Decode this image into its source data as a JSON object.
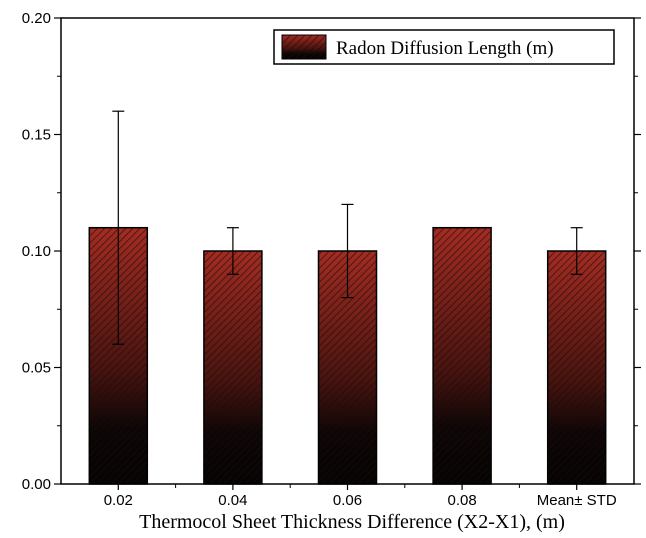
{
  "chart_data": {
    "type": "bar",
    "categories": [
      "0.02",
      "0.04",
      "0.06",
      "0.08",
      "Mean± STD"
    ],
    "values": [
      0.11,
      0.1,
      0.1,
      0.11,
      0.1
    ],
    "error_low": [
      0.06,
      0.09,
      0.08,
      0.11,
      0.09
    ],
    "error_high": [
      0.16,
      0.11,
      0.12,
      0.11,
      0.11
    ],
    "series": [
      {
        "name": "Radon Diffusion Length (m)",
        "values": [
          0.11,
          0.1,
          0.1,
          0.11,
          0.1
        ]
      }
    ],
    "title": "",
    "xlabel": "Thermocol Sheet Thickness Difference (X2-X1), (m)",
    "ylabel": "",
    "ylim": [
      0,
      0.2
    ],
    "yticks": [
      "0.00",
      "0.05",
      "0.10",
      "0.15",
      "0.20"
    ],
    "grid": false,
    "legend_position": "top-right",
    "bar_fill": "red-to-black gradient with diagonal hatching",
    "colors": {
      "bar_top": "#9e2a22",
      "bar_bottom": "#0a0505",
      "hatch": "#1a0a08",
      "axis": "#000000"
    }
  }
}
